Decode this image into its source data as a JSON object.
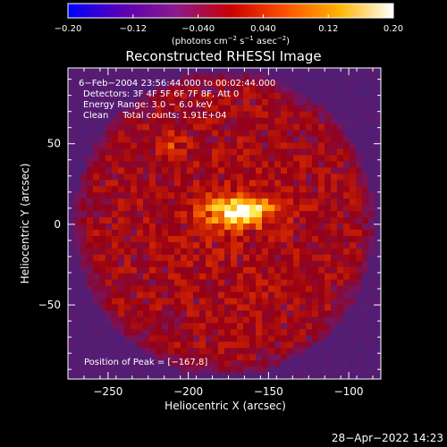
{
  "chart_data": {
    "type": "heatmap",
    "title": "Reconstructed RHESSI Image",
    "xlabel": "Heliocentric X (arcsec)",
    "ylabel": "Heliocentric Y (arcsec)",
    "xlim": [
      -275,
      -80
    ],
    "ylim": [
      -96,
      97
    ],
    "xticks": [
      -250,
      -200,
      -150,
      -100
    ],
    "xtick_labels": [
      "−250",
      "−200",
      "−150",
      "−100"
    ],
    "yticks": [
      50,
      0,
      -50
    ],
    "ytick_labels": [
      "50",
      "0",
      "−50"
    ],
    "colorbar": {
      "range": [
        -0.2,
        0.2
      ],
      "ticks": [
        -0.2,
        -0.12,
        -0.04,
        0.04,
        0.12,
        0.2
      ],
      "tick_labels": [
        "−0.20",
        "−0.12",
        "−0.040",
        "0.040",
        "0.12",
        "0.20"
      ],
      "unit_label": "(photons cm",
      "unit_exp1": "−2",
      "unit_mid": " s",
      "unit_exp2": "−1",
      "unit_mid2": " asec",
      "unit_exp3": "−2",
      "unit_end": ")",
      "colors": [
        "#0000ff",
        "#5a00b4",
        "#8c1a8c",
        "#c80000",
        "#ff5000",
        "#ffb400",
        "#ffffff"
      ]
    },
    "annotations": [
      "6−Feb−2004 23:56:44.000 to 00:02:44.000",
      "Detectors: 3F 4F 5F 6F 7F 8F, Att 0",
      "Energy Range: 3.0 − 6.0 keV",
      "Clean     Total counts: 1.91E+04"
    ],
    "peak_label": "Position of Peak = [−167,8]",
    "peak": {
      "x": -167,
      "y": 8
    }
  },
  "footer": {
    "timestamp": "28−Apr−2022 14:23"
  }
}
